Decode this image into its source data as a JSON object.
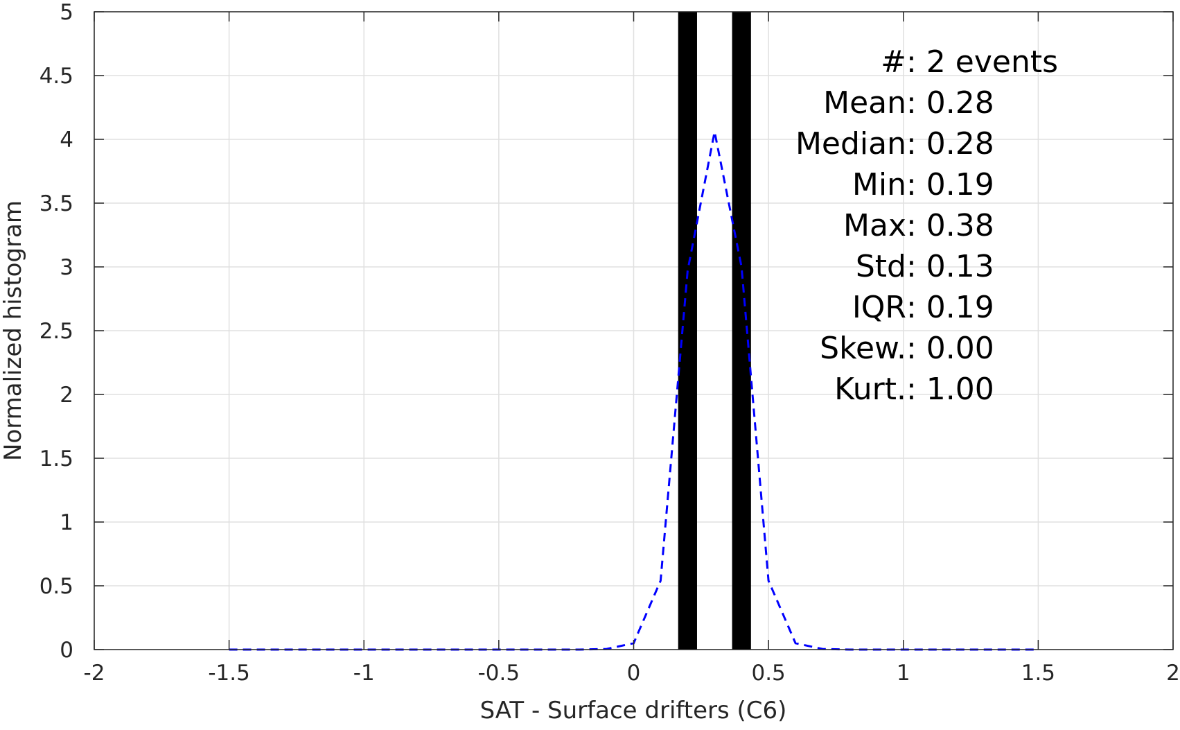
{
  "chart_data": {
    "type": "bar",
    "xlabel": "SAT - Surface drifters (C6)",
    "ylabel": "Normalized histogram",
    "xlim": [
      -2,
      2
    ],
    "ylim": [
      0,
      5
    ],
    "grid": true,
    "x_ticks": [
      -2,
      -1.5,
      -1,
      -0.5,
      0,
      0.5,
      1,
      1.5,
      2
    ],
    "y_ticks": [
      0,
      0.5,
      1,
      1.5,
      2,
      2.5,
      3,
      3.5,
      4,
      4.5,
      5
    ],
    "x_tick_labels": [
      "-2",
      "-1.5",
      "-1",
      "-0.5",
      "0",
      "0.5",
      "1",
      "1.5",
      "2"
    ],
    "y_tick_labels": [
      "0",
      "0.5",
      "1",
      "1.5",
      "2",
      "2.5",
      "3",
      "3.5",
      "4",
      "4.5",
      "5"
    ],
    "bars": [
      {
        "x0": 0.165,
        "x1": 0.235,
        "value": 5
      },
      {
        "x0": 0.365,
        "x1": 0.435,
        "value": 5
      }
    ],
    "bar_color": "#000000",
    "curve": {
      "style": "dashed",
      "color": "#0000ff",
      "x": [
        -1.5,
        -1.4,
        -1.3,
        -1.2,
        -1.1,
        -1.0,
        -0.9,
        -0.8,
        -0.7,
        -0.6,
        -0.5,
        -0.4,
        -0.3,
        -0.2,
        -0.1,
        0.0,
        0.1,
        0.2,
        0.3,
        0.4,
        0.5,
        0.6,
        0.7,
        0.8,
        0.9,
        1.0,
        1.1,
        1.2,
        1.3,
        1.4,
        1.5
      ],
      "y": [
        0,
        0,
        0,
        0,
        0,
        0,
        0,
        0,
        0,
        0,
        0,
        0,
        0,
        0,
        0.005,
        0.05,
        0.54,
        2.97,
        4.06,
        3.0,
        0.54,
        0.05,
        0.005,
        0,
        0,
        0,
        0,
        0,
        0,
        0,
        0
      ]
    },
    "stats": [
      {
        "label": "#  ",
        "sep": ": ",
        "value": "2 events"
      },
      {
        "label": "Mean ",
        "sep": ": ",
        "value": "0.28"
      },
      {
        "label": "Median ",
        "sep": ": ",
        "value": "0.28"
      },
      {
        "label": "Min ",
        "sep": ": ",
        "value": "0.19"
      },
      {
        "label": "Max ",
        "sep": ": ",
        "value": "0.38"
      },
      {
        "label": "Std ",
        "sep": ": ",
        "value": "0.13"
      },
      {
        "label": "IQR ",
        "sep": ": ",
        "value": "0.19"
      },
      {
        "label": "Skew. ",
        "sep": ": ",
        "value": "0.00"
      },
      {
        "label": "Kurt. ",
        "sep": ": ",
        "value": "1.00"
      }
    ]
  }
}
